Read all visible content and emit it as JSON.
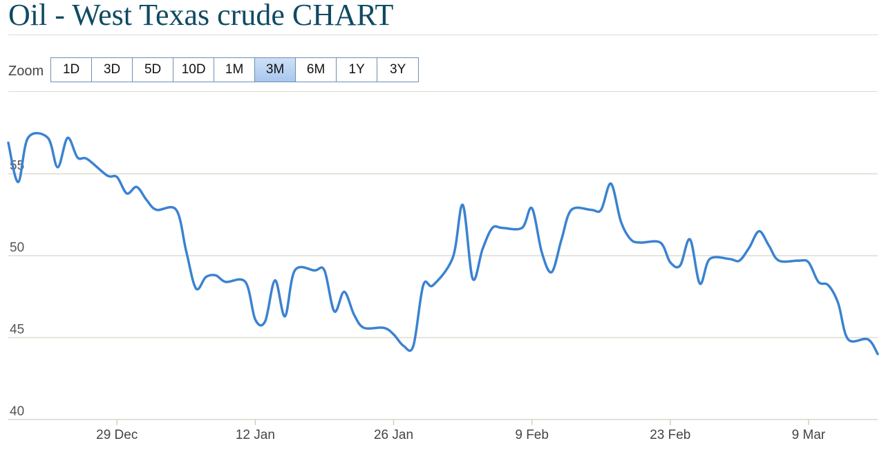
{
  "header": {
    "title": "Oil - West Texas crude CHART"
  },
  "zoom": {
    "label": "Zoom",
    "buttons": [
      "1D",
      "3D",
      "5D",
      "10D",
      "1M",
      "3M",
      "6M",
      "1Y",
      "3Y"
    ],
    "active": "3M"
  },
  "chart_data": {
    "type": "line",
    "title": "Oil - West Texas crude CHART",
    "xlabel": "",
    "ylabel": "",
    "ylim": [
      40,
      60
    ],
    "yticks": [
      40,
      45,
      50,
      55
    ],
    "x_ticks": [
      {
        "date": "2014-12-29",
        "label": "29 Dec"
      },
      {
        "date": "2015-01-12",
        "label": "12 Jan"
      },
      {
        "date": "2015-01-26",
        "label": "26 Jan"
      },
      {
        "date": "2015-02-09",
        "label": "9 Feb"
      },
      {
        "date": "2015-02-23",
        "label": "23 Feb"
      },
      {
        "date": "2015-03-09",
        "label": "9 Mar"
      }
    ],
    "xlim": [
      "2014-12-18",
      "2015-03-16"
    ],
    "grid": true,
    "series": [
      {
        "color": "#3b82d1",
        "x": [
          "2014-12-18",
          "2014-12-19",
          "2014-12-20",
          "2014-12-22",
          "2014-12-23",
          "2014-12-24",
          "2014-12-25",
          "2014-12-26",
          "2014-12-28",
          "2014-12-29",
          "2014-12-30",
          "2014-12-31",
          "2015-01-01",
          "2015-01-02",
          "2015-01-04",
          "2015-01-05",
          "2015-01-06",
          "2015-01-07",
          "2015-01-08",
          "2015-01-09",
          "2015-01-11",
          "2015-01-12",
          "2015-01-13",
          "2015-01-14",
          "2015-01-15",
          "2015-01-16",
          "2015-01-18",
          "2015-01-19",
          "2015-01-20",
          "2015-01-21",
          "2015-01-22",
          "2015-01-23",
          "2015-01-25",
          "2015-01-26",
          "2015-01-27",
          "2015-01-28",
          "2015-01-29",
          "2015-01-30",
          "2015-02-01",
          "2015-02-02",
          "2015-02-03",
          "2015-02-04",
          "2015-02-05",
          "2015-02-06",
          "2015-02-08",
          "2015-02-09",
          "2015-02-10",
          "2015-02-11",
          "2015-02-12",
          "2015-02-13",
          "2015-02-15",
          "2015-02-16",
          "2015-02-17",
          "2015-02-18",
          "2015-02-19",
          "2015-02-20",
          "2015-02-22",
          "2015-02-23",
          "2015-02-24",
          "2015-02-25",
          "2015-02-26",
          "2015-02-27",
          "2015-03-01",
          "2015-03-02",
          "2015-03-03",
          "2015-03-04",
          "2015-03-05",
          "2015-03-06",
          "2015-03-08",
          "2015-03-09",
          "2015-03-10",
          "2015-03-11",
          "2015-03-12",
          "2015-03-13",
          "2015-03-15",
          "2015-03-16"
        ],
        "y": [
          56.9,
          54.5,
          57.2,
          57.2,
          55.4,
          57.2,
          56.0,
          55.9,
          54.9,
          54.8,
          53.8,
          54.2,
          53.4,
          52.8,
          52.8,
          50.3,
          48.0,
          48.7,
          48.8,
          48.4,
          48.4,
          46.1,
          46.0,
          48.5,
          46.3,
          49.1,
          49.1,
          49.1,
          46.6,
          47.8,
          46.4,
          45.6,
          45.6,
          45.2,
          44.5,
          44.5,
          48.2,
          48.2,
          49.9,
          53.1,
          48.6,
          50.4,
          51.7,
          51.7,
          51.7,
          52.9,
          50.2,
          49.0,
          51.0,
          52.8,
          52.8,
          52.8,
          54.4,
          52.1,
          51.0,
          50.8,
          50.8,
          49.6,
          49.4,
          51.0,
          48.3,
          49.8,
          49.8,
          49.7,
          50.5,
          51.5,
          50.6,
          49.7,
          49.7,
          49.6,
          48.4,
          48.2,
          47.1,
          44.9,
          44.9,
          44.0
        ]
      }
    ]
  }
}
